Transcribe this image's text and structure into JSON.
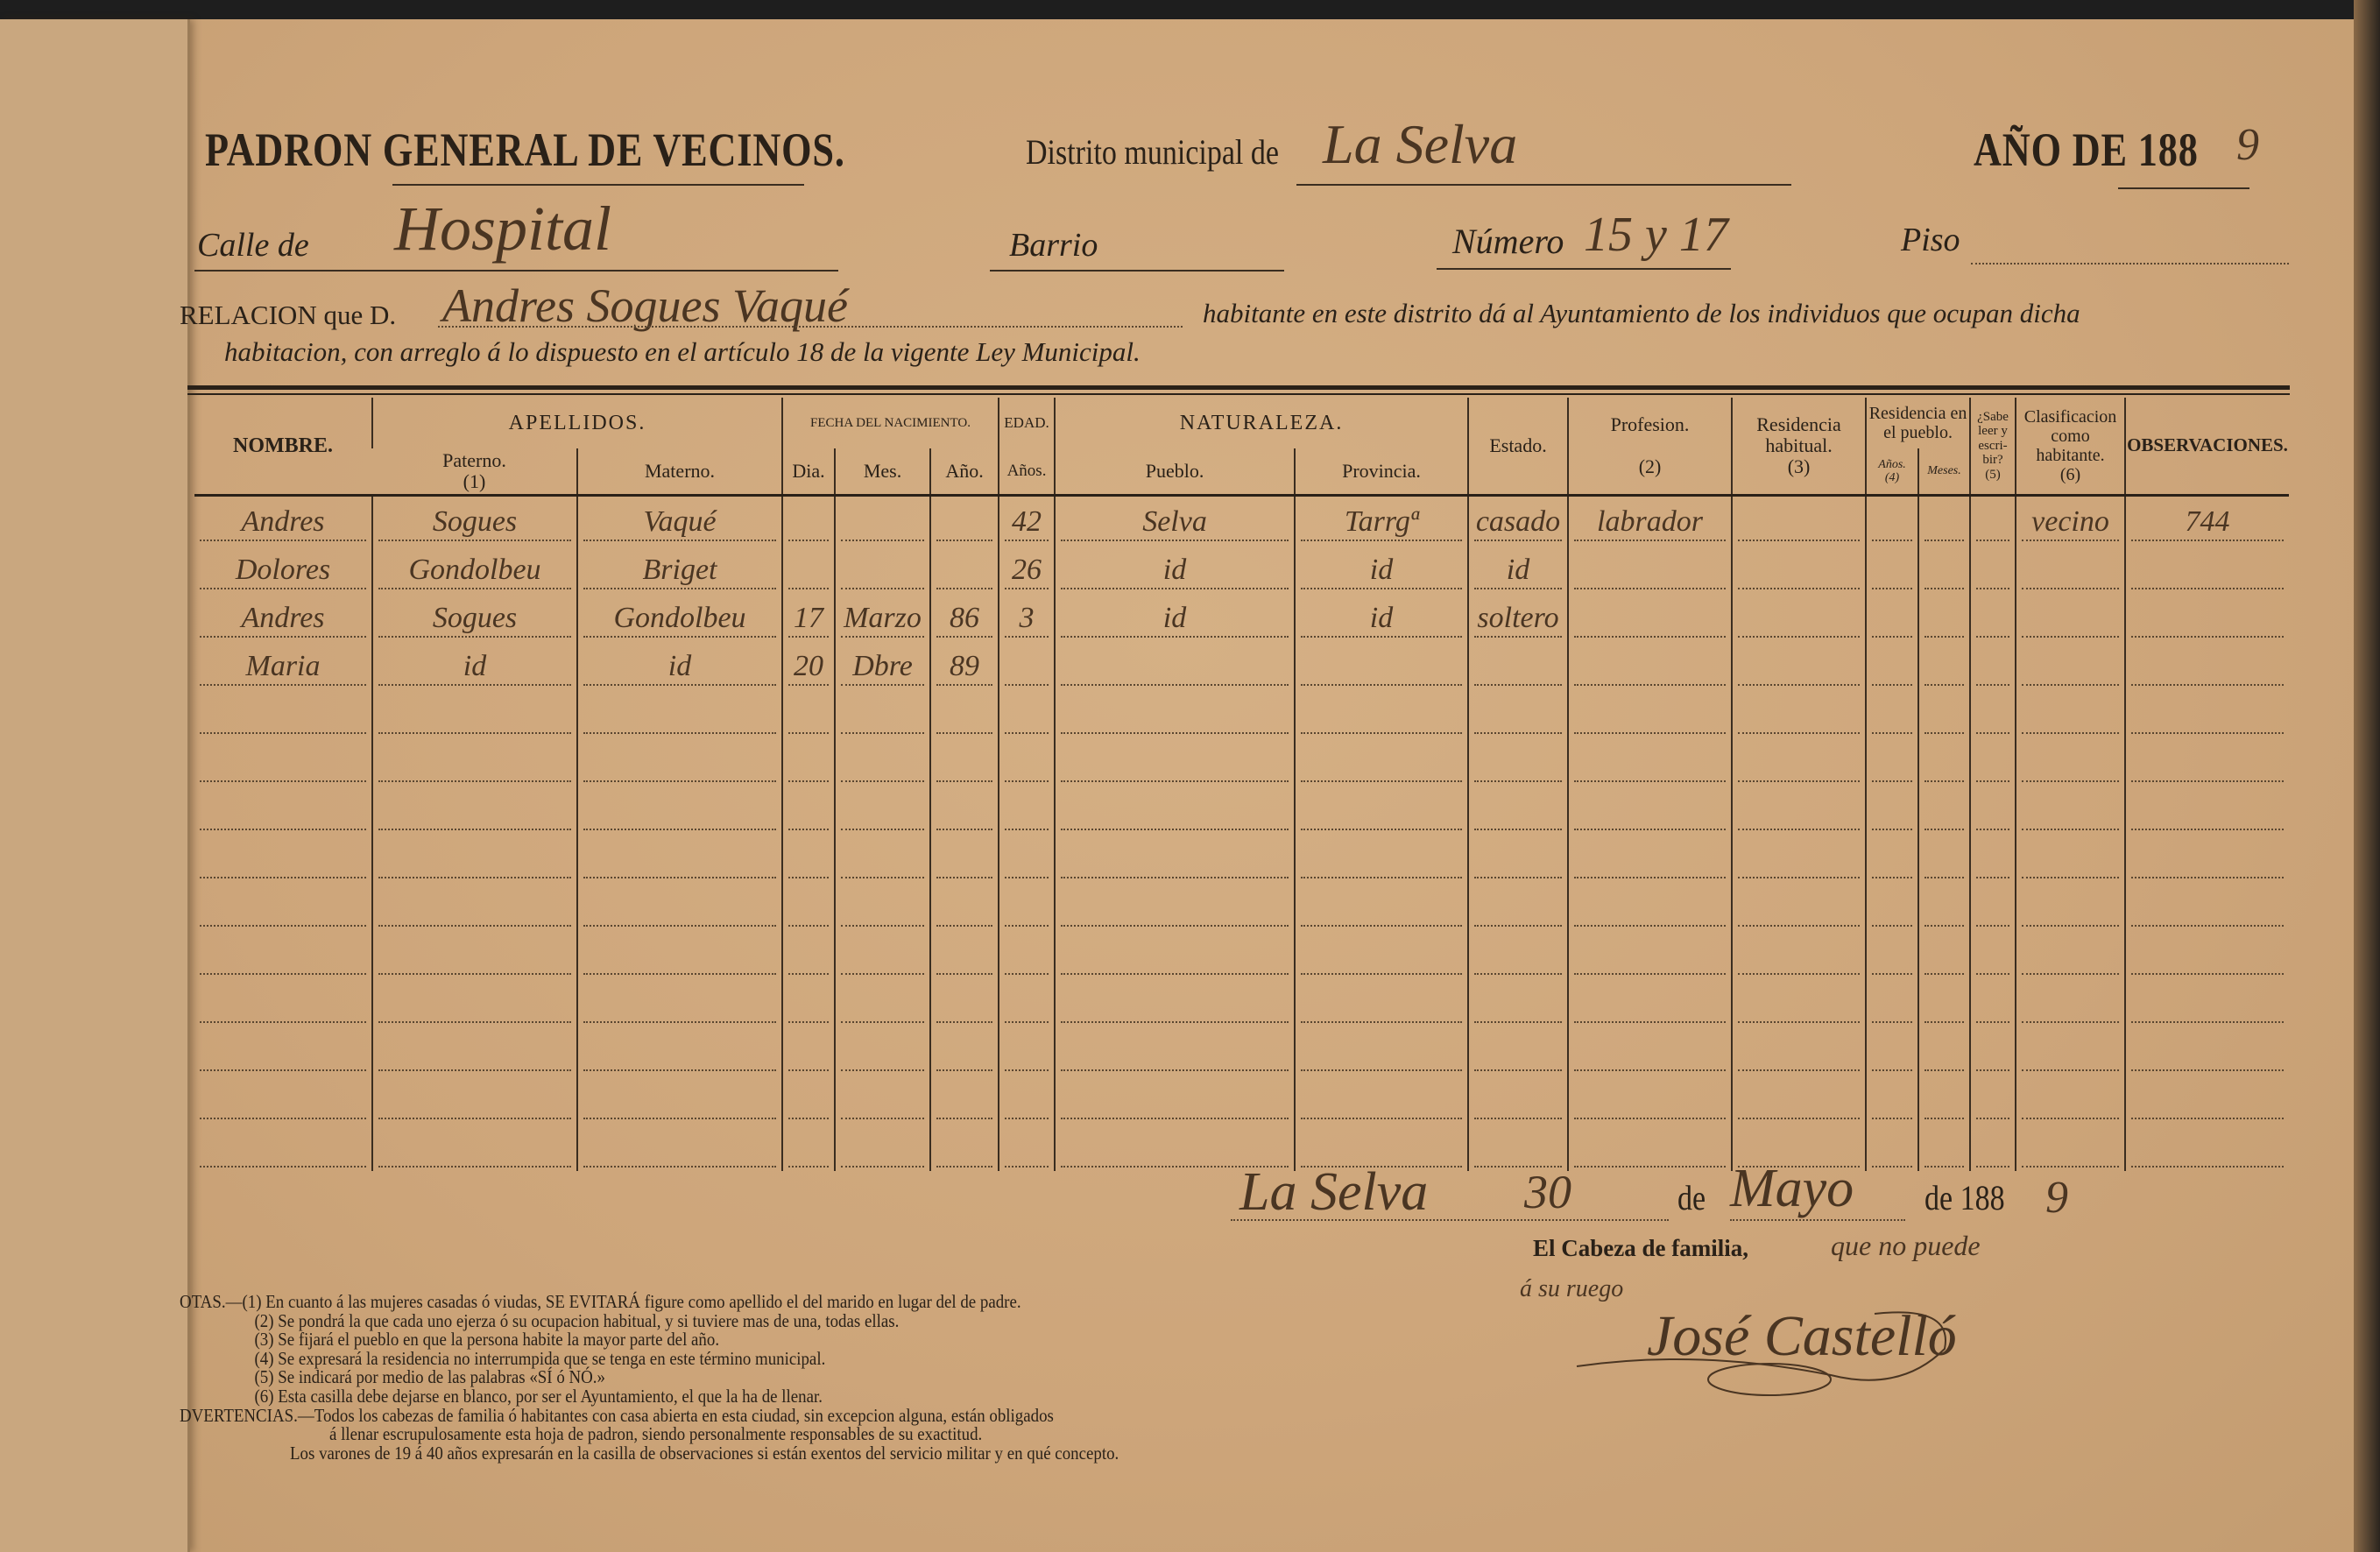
{
  "header": {
    "title": "PADRON GENERAL DE VECINOS.",
    "distrito_label": "Distrito municipal de",
    "distrito_value": "La Selva",
    "year_label": "AÑO DE 188",
    "year_handwritten": "9"
  },
  "address": {
    "calle_label": "Calle de",
    "calle_value": "Hospital",
    "barrio_label": "Barrio",
    "barrio_value": "",
    "numero_label": "Número",
    "numero_value": "15 y 17",
    "piso_label": "Piso",
    "piso_value": ""
  },
  "relacion": {
    "prefix": "RELACION que D.",
    "name": "Andres Sogues Vaqué",
    "line1_rest": "habitante en este distrito dá al Ayuntamiento de los individuos que ocupan dicha",
    "line2": "habitacion, con arreglo á lo dispuesto en el artículo 18 de la vigente Ley Municipal."
  },
  "table": {
    "headers": {
      "nombre": "NOMBRE.",
      "apellidos": "APELLIDOS.",
      "paterno": "Paterno.",
      "paterno_note": "(1)",
      "materno": "Materno.",
      "fecha": "FECHA DEL NACIMIENTO.",
      "dia": "Dia.",
      "mes": "Mes.",
      "ano": "Año.",
      "edad": "EDAD.",
      "anos": "Años.",
      "naturaleza": "NATURALEZA.",
      "pueblo": "Pueblo.",
      "provincia": "Provincia.",
      "estado": "Estado.",
      "profesion": "Profesion.",
      "profesion_note": "(2)",
      "residencia_habitual": "Residencia habitual.",
      "residencia_habitual_note": "(3)",
      "residencia_pueblo": "Residencia en el pueblo.",
      "res_anos": "Años.",
      "res_meses": "Meses.",
      "residencia_pueblo_note": "(4)",
      "sabe_leer": "¿Sabe leer y escri-bir?",
      "sabe_leer_note": "(5)",
      "clasificacion": "Clasificacion como habitante.",
      "clasificacion_note": "(6)",
      "observaciones": "OBSERVACIONES."
    },
    "rows": [
      [
        "Andres",
        "Sogues",
        "Vaqué",
        "",
        "",
        "",
        "42",
        "Selva",
        "Tarrgª",
        "casado",
        "labrador",
        "",
        "",
        "",
        "",
        "vecino",
        "744"
      ],
      [
        "Dolores",
        "Gondolbeu",
        "Briget",
        "",
        "",
        "",
        "26",
        "id",
        "id",
        "id",
        "",
        "",
        "",
        "",
        "",
        "",
        ""
      ],
      [
        "Andres",
        "Sogues",
        "Gondolbeu",
        "17",
        "Marzo",
        "86",
        "3",
        "id",
        "id",
        "soltero",
        "",
        "",
        "",
        "",
        "",
        "",
        ""
      ],
      [
        "Maria",
        "id",
        "id",
        "20",
        "Dbre",
        "89",
        "",
        "",
        "",
        "",
        "",
        "",
        "",
        "",
        "",
        "",
        ""
      ],
      [
        "",
        "",
        "",
        "",
        "",
        "",
        "",
        "",
        "",
        "",
        "",
        "",
        "",
        "",
        "",
        "",
        ""
      ],
      [
        "",
        "",
        "",
        "",
        "",
        "",
        "",
        "",
        "",
        "",
        "",
        "",
        "",
        "",
        "",
        "",
        ""
      ],
      [
        "",
        "",
        "",
        "",
        "",
        "",
        "",
        "",
        "",
        "",
        "",
        "",
        "",
        "",
        "",
        "",
        ""
      ],
      [
        "",
        "",
        "",
        "",
        "",
        "",
        "",
        "",
        "",
        "",
        "",
        "",
        "",
        "",
        "",
        "",
        ""
      ],
      [
        "",
        "",
        "",
        "",
        "",
        "",
        "",
        "",
        "",
        "",
        "",
        "",
        "",
        "",
        "",
        "",
        ""
      ],
      [
        "",
        "",
        "",
        "",
        "",
        "",
        "",
        "",
        "",
        "",
        "",
        "",
        "",
        "",
        "",
        "",
        ""
      ],
      [
        "",
        "",
        "",
        "",
        "",
        "",
        "",
        "",
        "",
        "",
        "",
        "",
        "",
        "",
        "",
        "",
        ""
      ],
      [
        "",
        "",
        "",
        "",
        "",
        "",
        "",
        "",
        "",
        "",
        "",
        "",
        "",
        "",
        "",
        "",
        ""
      ],
      [
        "",
        "",
        "",
        "",
        "",
        "",
        "",
        "",
        "",
        "",
        "",
        "",
        "",
        "",
        "",
        "",
        ""
      ],
      [
        "",
        "",
        "",
        "",
        "",
        "",
        "",
        "",
        "",
        "",
        "",
        "",
        "",
        "",
        "",
        "",
        ""
      ]
    ]
  },
  "footer": {
    "place": "La Selva",
    "day": "30",
    "de1": "de",
    "month": "Mayo",
    "de_year": "de 188",
    "year_handwritten": "9",
    "cabeza_label": "El Cabeza de familia,",
    "cabeza_note": "que no puede",
    "ruego": "á su ruego",
    "signature": "José Castelló"
  },
  "notes": [
    "OTAS.—(1)  En cuanto á las mujeres casadas ó viudas, SE EVITARÁ figure como apellido el del marido en lugar del de padre.",
    "(2)  Se pondrá la que cada uno ejerza ó su ocupacion habitual, y si tuviere mas de una, todas ellas.",
    "(3)  Se fijará el pueblo en que la persona habite la mayor parte del año.",
    "(4)  Se expresará la residencia no interrumpida que se tenga en este término municipal.",
    "(5)  Se indicará por medio de las palabras «SÍ ó NÓ.»",
    "(6)  Esta casilla debe dejarse en blanco, por ser el Ayuntamiento, el que la ha de llenar.",
    "DVERTENCIAS.—Todos los cabezas de familia ó habitantes con casa abierta en esta ciudad, sin excepcion alguna, están obligados",
    "á llenar escrupulosamente esta hoja de padron, siendo personalmente responsables de su exactitud.",
    "Los varones de 19 á 40 años expresarán en la casilla de observaciones si están exentos del servicio militar y en qué concepto."
  ],
  "colors": {
    "paper": "#cfa87b",
    "ink": "#2a2118",
    "handwriting": "#4a3522"
  }
}
